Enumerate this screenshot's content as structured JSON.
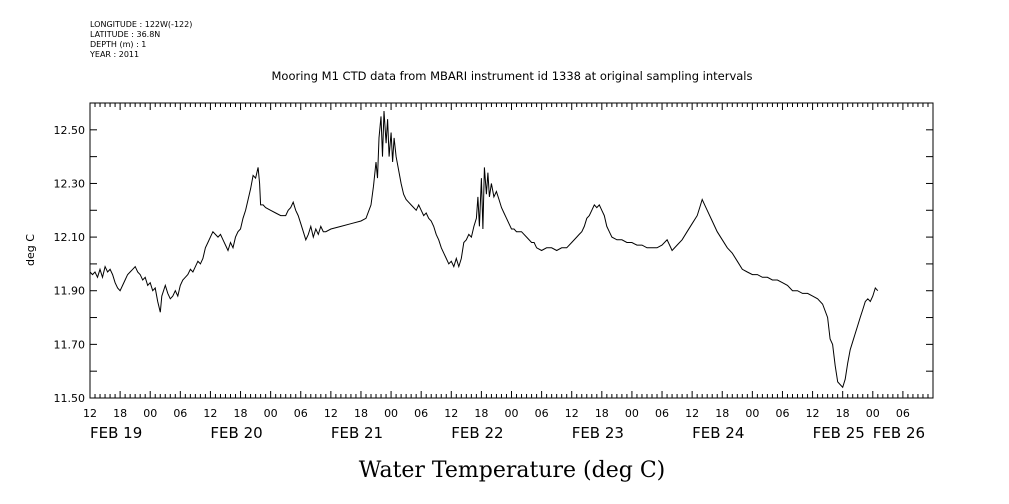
{
  "meta": {
    "longitude": "LONGITUDE : 122W(-122)",
    "latitude": "LATITUDE : 36.8N",
    "depth": "DEPTH (m) : 1",
    "year": "YEAR : 2011"
  },
  "chart_data": {
    "type": "line",
    "title": "Mooring M1 CTD data from MBARI instrument id 1338 at original sampling intervals",
    "xlabel": "Water Temperature (deg C)",
    "ylabel": "deg C",
    "ylim": [
      11.5,
      12.6
    ],
    "y_ticks": [
      "11.50",
      "11.70",
      "11.90",
      "12.10",
      "12.30",
      "12.50"
    ],
    "x_range_hours": [
      0,
      168
    ],
    "x_start": "FEB 19 12:00",
    "x_hour_ticks": [
      "12",
      "18",
      "00",
      "06",
      "12",
      "18",
      "00",
      "06",
      "12",
      "18",
      "00",
      "06",
      "12",
      "18",
      "00",
      "06",
      "12",
      "18",
      "00",
      "06",
      "12",
      "18",
      "00",
      "06",
      "12",
      "18",
      "00",
      "06"
    ],
    "x_day_labels": [
      {
        "label": "FEB 19",
        "hour": 0
      },
      {
        "label": "FEB 20",
        "hour": 24
      },
      {
        "label": "FEB 21",
        "hour": 48
      },
      {
        "label": "FEB 22",
        "hour": 72
      },
      {
        "label": "FEB 23",
        "hour": 96
      },
      {
        "label": "FEB 24",
        "hour": 120
      },
      {
        "label": "FEB 25",
        "hour": 144
      },
      {
        "label": "FEB 26",
        "hour": 156
      }
    ],
    "series": [
      {
        "points": [
          [
            0,
            11.97
          ],
          [
            0.5,
            11.96
          ],
          [
            1,
            11.97
          ],
          [
            1.5,
            11.95
          ],
          [
            2,
            11.98
          ],
          [
            2.5,
            11.95
          ],
          [
            3,
            11.99
          ],
          [
            3.5,
            11.97
          ],
          [
            4,
            11.98
          ],
          [
            4.5,
            11.96
          ],
          [
            5,
            11.93
          ],
          [
            5.5,
            11.91
          ],
          [
            6,
            11.9
          ],
          [
            6.5,
            11.92
          ],
          [
            7,
            11.94
          ],
          [
            7.5,
            11.96
          ],
          [
            8,
            11.97
          ],
          [
            8.5,
            11.98
          ],
          [
            9,
            11.99
          ],
          [
            9.5,
            11.97
          ],
          [
            10,
            11.96
          ],
          [
            10.5,
            11.94
          ],
          [
            11,
            11.95
          ],
          [
            11.5,
            11.92
          ],
          [
            12,
            11.93
          ],
          [
            12.5,
            11.9
          ],
          [
            13,
            11.91
          ],
          [
            13.5,
            11.86
          ],
          [
            14,
            11.82
          ],
          [
            14.3,
            11.88
          ],
          [
            15,
            11.92
          ],
          [
            15.5,
            11.89
          ],
          [
            16,
            11.87
          ],
          [
            16.5,
            11.88
          ],
          [
            17,
            11.9
          ],
          [
            17.5,
            11.88
          ],
          [
            18,
            11.92
          ],
          [
            18.5,
            11.94
          ],
          [
            19,
            11.95
          ],
          [
            19.5,
            11.96
          ],
          [
            20,
            11.98
          ],
          [
            20.5,
            11.97
          ],
          [
            21,
            11.99
          ],
          [
            21.5,
            12.01
          ],
          [
            22,
            12.0
          ],
          [
            22.5,
            12.02
          ],
          [
            23,
            12.06
          ],
          [
            23.5,
            12.08
          ],
          [
            24,
            12.1
          ],
          [
            24.5,
            12.12
          ],
          [
            25,
            12.11
          ],
          [
            25.5,
            12.1
          ],
          [
            26,
            12.11
          ],
          [
            26.5,
            12.09
          ],
          [
            27,
            12.07
          ],
          [
            27.5,
            12.05
          ],
          [
            28,
            12.08
          ],
          [
            28.5,
            12.06
          ],
          [
            29,
            12.1
          ],
          [
            29.5,
            12.12
          ],
          [
            30,
            12.13
          ],
          [
            30.5,
            12.17
          ],
          [
            31,
            12.2
          ],
          [
            31.5,
            12.24
          ],
          [
            32,
            12.28
          ],
          [
            32.5,
            12.33
          ],
          [
            33,
            12.32
          ],
          [
            33.5,
            12.36
          ],
          [
            33.8,
            12.3
          ],
          [
            34,
            12.22
          ],
          [
            34.5,
            12.22
          ],
          [
            35,
            12.21
          ],
          [
            36,
            12.2
          ],
          [
            37,
            12.19
          ],
          [
            38,
            12.18
          ],
          [
            39,
            12.18
          ],
          [
            39.5,
            12.2
          ],
          [
            40,
            12.21
          ],
          [
            40.5,
            12.23
          ],
          [
            41,
            12.2
          ],
          [
            41.5,
            12.18
          ],
          [
            42,
            12.15
          ],
          [
            42.5,
            12.12
          ],
          [
            43,
            12.09
          ],
          [
            43.5,
            12.11
          ],
          [
            44,
            12.14
          ],
          [
            44.5,
            12.1
          ],
          [
            45,
            12.13
          ],
          [
            45.5,
            12.11
          ],
          [
            46,
            12.14
          ],
          [
            46.5,
            12.12
          ],
          [
            47,
            12.12
          ],
          [
            48,
            12.13
          ],
          [
            50,
            12.14
          ],
          [
            52,
            12.15
          ],
          [
            54,
            12.16
          ],
          [
            55,
            12.17
          ],
          [
            56,
            12.22
          ],
          [
            56.5,
            12.29
          ],
          [
            57,
            12.38
          ],
          [
            57.3,
            12.32
          ],
          [
            57.6,
            12.47
          ],
          [
            58,
            12.55
          ],
          [
            58.3,
            12.4
          ],
          [
            58.6,
            12.57
          ],
          [
            59,
            12.45
          ],
          [
            59.3,
            12.54
          ],
          [
            59.6,
            12.4
          ],
          [
            60,
            12.49
          ],
          [
            60.3,
            12.38
          ],
          [
            60.6,
            12.47
          ],
          [
            61,
            12.4
          ],
          [
            61.5,
            12.35
          ],
          [
            62,
            12.3
          ],
          [
            62.5,
            12.26
          ],
          [
            63,
            12.24
          ],
          [
            63.5,
            12.23
          ],
          [
            64,
            12.22
          ],
          [
            64.5,
            12.21
          ],
          [
            65,
            12.2
          ],
          [
            65.5,
            12.22
          ],
          [
            66,
            12.2
          ],
          [
            66.5,
            12.18
          ],
          [
            67,
            12.19
          ],
          [
            67.5,
            12.17
          ],
          [
            68,
            12.16
          ],
          [
            68.5,
            12.14
          ],
          [
            69,
            12.11
          ],
          [
            69.5,
            12.09
          ],
          [
            70,
            12.06
          ],
          [
            70.5,
            12.04
          ],
          [
            71,
            12.02
          ],
          [
            71.5,
            12.0
          ],
          [
            72,
            12.01
          ],
          [
            72.5,
            11.99
          ],
          [
            73,
            12.02
          ],
          [
            73.5,
            11.99
          ],
          [
            74,
            12.02
          ],
          [
            74.5,
            12.08
          ],
          [
            75,
            12.09
          ],
          [
            75.5,
            12.11
          ],
          [
            76,
            12.1
          ],
          [
            76.5,
            12.14
          ],
          [
            77,
            12.17
          ],
          [
            77.3,
            12.25
          ],
          [
            77.6,
            12.14
          ],
          [
            78,
            12.32
          ],
          [
            78.3,
            12.13
          ],
          [
            78.6,
            12.36
          ],
          [
            79,
            12.26
          ],
          [
            79.3,
            12.34
          ],
          [
            79.6,
            12.25
          ],
          [
            80,
            12.3
          ],
          [
            80.5,
            12.25
          ],
          [
            81,
            12.27
          ],
          [
            81.5,
            12.24
          ],
          [
            82,
            12.21
          ],
          [
            82.5,
            12.19
          ],
          [
            83,
            12.17
          ],
          [
            83.5,
            12.15
          ],
          [
            84,
            12.13
          ],
          [
            84.5,
            12.13
          ],
          [
            85,
            12.12
          ],
          [
            86,
            12.12
          ],
          [
            87,
            12.1
          ],
          [
            88,
            12.08
          ],
          [
            88.5,
            12.08
          ],
          [
            89,
            12.06
          ],
          [
            90,
            12.05
          ],
          [
            91,
            12.06
          ],
          [
            92,
            12.06
          ],
          [
            93,
            12.05
          ],
          [
            94,
            12.06
          ],
          [
            95,
            12.06
          ],
          [
            96,
            12.08
          ],
          [
            97,
            12.1
          ],
          [
            97.5,
            12.11
          ],
          [
            98,
            12.12
          ],
          [
            98.5,
            12.14
          ],
          [
            99,
            12.17
          ],
          [
            99.5,
            12.18
          ],
          [
            100,
            12.2
          ],
          [
            100.5,
            12.22
          ],
          [
            101,
            12.21
          ],
          [
            101.5,
            12.22
          ],
          [
            102,
            12.2
          ],
          [
            102.5,
            12.18
          ],
          [
            103,
            12.14
          ],
          [
            103.5,
            12.12
          ],
          [
            104,
            12.1
          ],
          [
            105,
            12.09
          ],
          [
            106,
            12.09
          ],
          [
            107,
            12.08
          ],
          [
            108,
            12.08
          ],
          [
            109,
            12.07
          ],
          [
            110,
            12.07
          ],
          [
            111,
            12.06
          ],
          [
            112,
            12.06
          ],
          [
            113,
            12.06
          ],
          [
            114,
            12.07
          ],
          [
            115,
            12.09
          ],
          [
            115.5,
            12.07
          ],
          [
            116,
            12.05
          ],
          [
            117,
            12.07
          ],
          [
            118,
            12.09
          ],
          [
            119,
            12.12
          ],
          [
            120,
            12.15
          ],
          [
            121,
            12.18
          ],
          [
            121.5,
            12.21
          ],
          [
            122,
            12.24
          ],
          [
            122.5,
            12.22
          ],
          [
            123,
            12.2
          ],
          [
            124,
            12.16
          ],
          [
            125,
            12.12
          ],
          [
            126,
            12.09
          ],
          [
            127,
            12.06
          ],
          [
            128,
            12.04
          ],
          [
            129,
            12.01
          ],
          [
            130,
            11.98
          ],
          [
            131,
            11.97
          ],
          [
            132,
            11.96
          ],
          [
            133,
            11.96
          ],
          [
            134,
            11.95
          ],
          [
            135,
            11.95
          ],
          [
            136,
            11.94
          ],
          [
            137,
            11.94
          ],
          [
            138,
            11.93
          ],
          [
            139,
            11.92
          ],
          [
            140,
            11.9
          ],
          [
            141,
            11.9
          ],
          [
            142,
            11.89
          ],
          [
            143,
            11.89
          ],
          [
            144,
            11.88
          ],
          [
            145,
            11.87
          ],
          [
            146,
            11.85
          ],
          [
            147,
            11.8
          ],
          [
            147.5,
            11.72
          ],
          [
            148,
            11.7
          ],
          [
            148.5,
            11.62
          ],
          [
            149,
            11.56
          ],
          [
            149.5,
            11.55
          ],
          [
            150,
            11.54
          ],
          [
            150.5,
            11.57
          ],
          [
            151,
            11.63
          ],
          [
            151.5,
            11.68
          ],
          [
            152,
            11.71
          ],
          [
            152.5,
            11.74
          ],
          [
            153,
            11.77
          ],
          [
            153.5,
            11.8
          ],
          [
            154,
            11.83
          ],
          [
            154.5,
            11.86
          ],
          [
            155,
            11.87
          ],
          [
            155.5,
            11.86
          ],
          [
            156,
            11.88
          ],
          [
            156.5,
            11.91
          ],
          [
            157,
            11.9
          ]
        ]
      }
    ]
  }
}
